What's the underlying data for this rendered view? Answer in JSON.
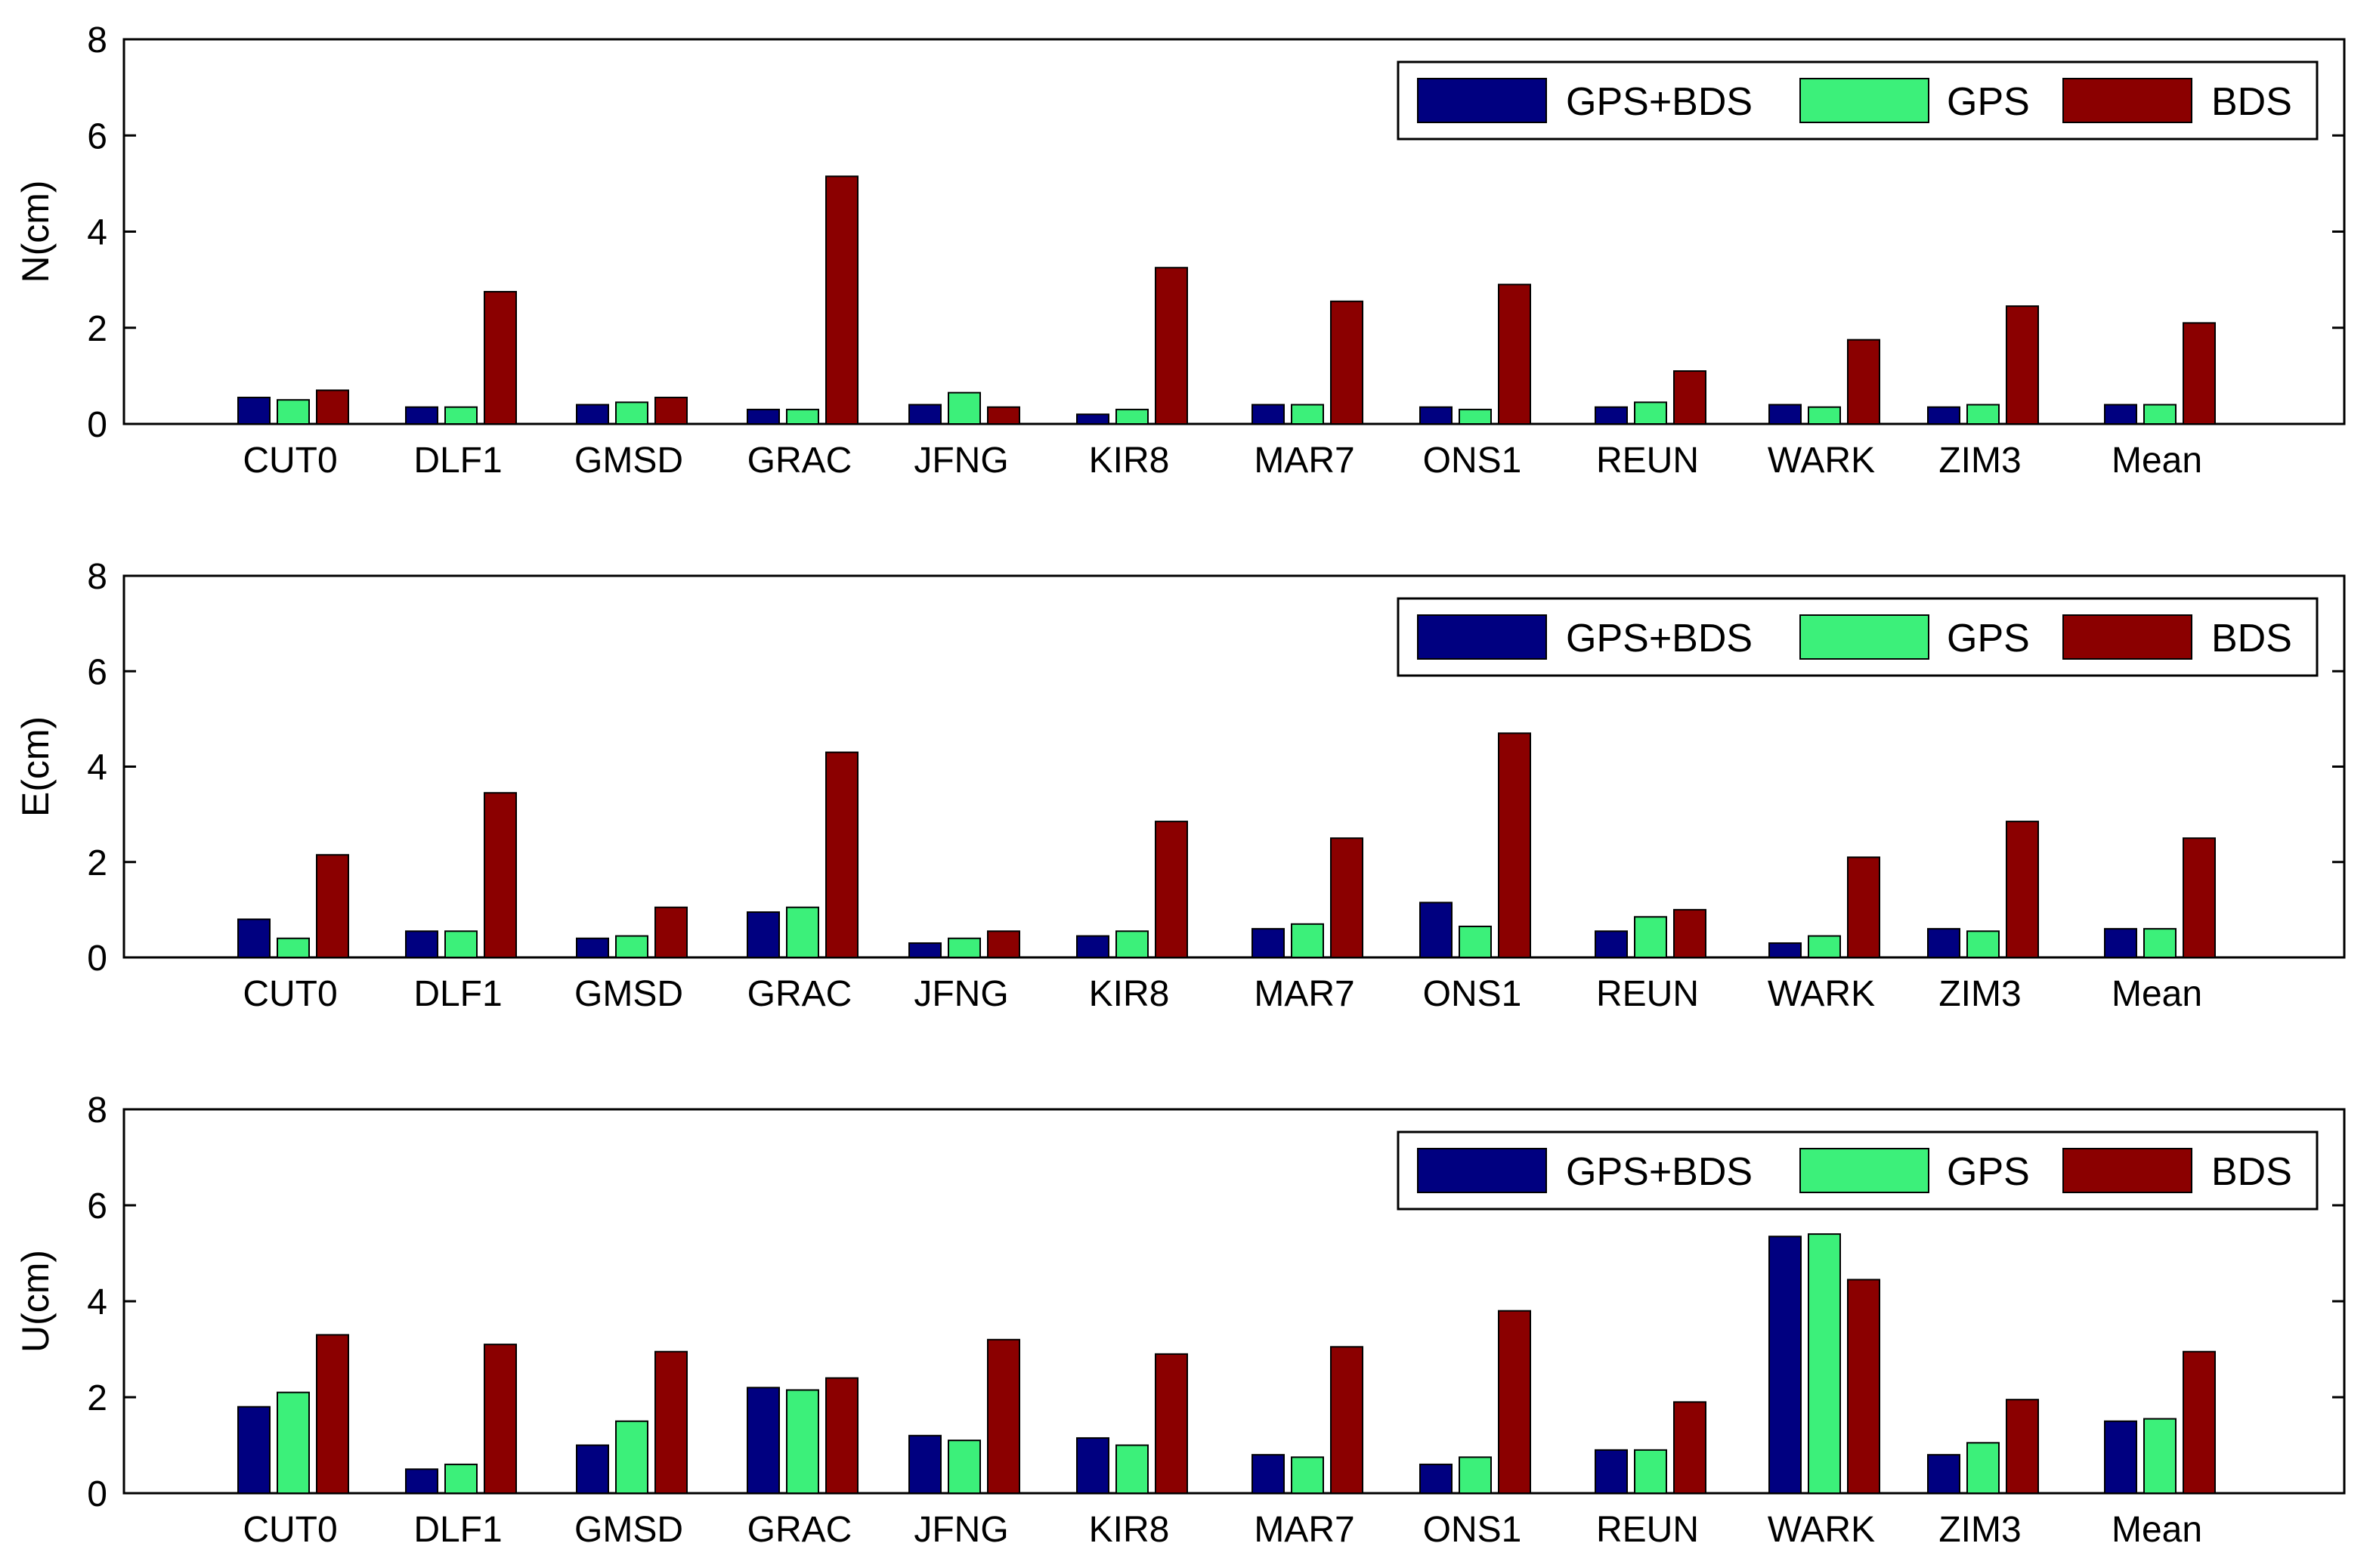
{
  "series_colors": {
    "GPS+BDS": "#000080",
    "GPS": "#3cf07a",
    "BDS": "#8b0000"
  },
  "chart_data": [
    {
      "type": "bar",
      "ylabel": "N(cm)",
      "ylim": [
        0,
        8
      ],
      "yticks": [
        "0",
        "2",
        "4",
        "6",
        "8"
      ],
      "legend": "top-right",
      "categories": [
        "CUT0",
        "DLF1",
        "GMSD",
        "GRAC",
        "JFNG",
        "KIR8",
        "MAR7",
        "ONS1",
        "REUN",
        "WARK",
        "ZIM3",
        "Mean"
      ],
      "series": [
        {
          "name": "GPS+BDS",
          "values": [
            0.55,
            0.35,
            0.4,
            0.3,
            0.4,
            0.2,
            0.4,
            0.35,
            0.35,
            0.4,
            0.35,
            0.4
          ]
        },
        {
          "name": "GPS",
          "values": [
            0.5,
            0.35,
            0.45,
            0.3,
            0.65,
            0.3,
            0.4,
            0.3,
            0.45,
            0.35,
            0.4,
            0.4
          ]
        },
        {
          "name": "BDS",
          "values": [
            0.7,
            2.75,
            0.55,
            5.15,
            0.35,
            3.25,
            2.55,
            2.9,
            1.1,
            1.75,
            2.45,
            2.1
          ]
        }
      ]
    },
    {
      "type": "bar",
      "ylabel": "E(cm)",
      "ylim": [
        0,
        8
      ],
      "yticks": [
        "0",
        "2",
        "4",
        "6",
        "8"
      ],
      "legend": "top-right",
      "categories": [
        "CUT0",
        "DLF1",
        "GMSD",
        "GRAC",
        "JFNG",
        "KIR8",
        "MAR7",
        "ONS1",
        "REUN",
        "WARK",
        "ZIM3",
        "Mean"
      ],
      "series": [
        {
          "name": "GPS+BDS",
          "values": [
            0.8,
            0.55,
            0.4,
            0.95,
            0.3,
            0.45,
            0.6,
            1.15,
            0.55,
            0.3,
            0.6,
            0.6
          ]
        },
        {
          "name": "GPS",
          "values": [
            0.4,
            0.55,
            0.45,
            1.05,
            0.4,
            0.55,
            0.7,
            0.65,
            0.85,
            0.45,
            0.55,
            0.6
          ]
        },
        {
          "name": "BDS",
          "values": [
            2.15,
            3.45,
            1.05,
            4.3,
            0.55,
            2.85,
            2.5,
            4.7,
            1.0,
            2.1,
            2.85,
            2.5
          ]
        }
      ]
    },
    {
      "type": "bar",
      "ylabel": "U(cm)",
      "ylim": [
        0,
        8
      ],
      "yticks": [
        "0",
        "2",
        "4",
        "6",
        "8"
      ],
      "legend": "top-right",
      "categories": [
        "CUT0",
        "DLF1",
        "GMSD",
        "GRAC",
        "JFNG",
        "KIR8",
        "MAR7",
        "ONS1",
        "REUN",
        "WARK",
        "ZIM3",
        "Mean"
      ],
      "series": [
        {
          "name": "GPS+BDS",
          "values": [
            1.8,
            0.5,
            1.0,
            2.2,
            1.2,
            1.15,
            0.8,
            0.6,
            0.9,
            5.35,
            0.8,
            1.5
          ]
        },
        {
          "name": "GPS",
          "values": [
            2.1,
            0.6,
            1.5,
            2.15,
            1.1,
            1.0,
            0.75,
            0.75,
            0.9,
            5.4,
            1.05,
            1.55
          ]
        },
        {
          "name": "BDS",
          "values": [
            3.3,
            3.1,
            2.95,
            2.4,
            3.2,
            2.9,
            3.05,
            3.8,
            1.9,
            4.45,
            1.95,
            2.95
          ]
        }
      ]
    }
  ]
}
